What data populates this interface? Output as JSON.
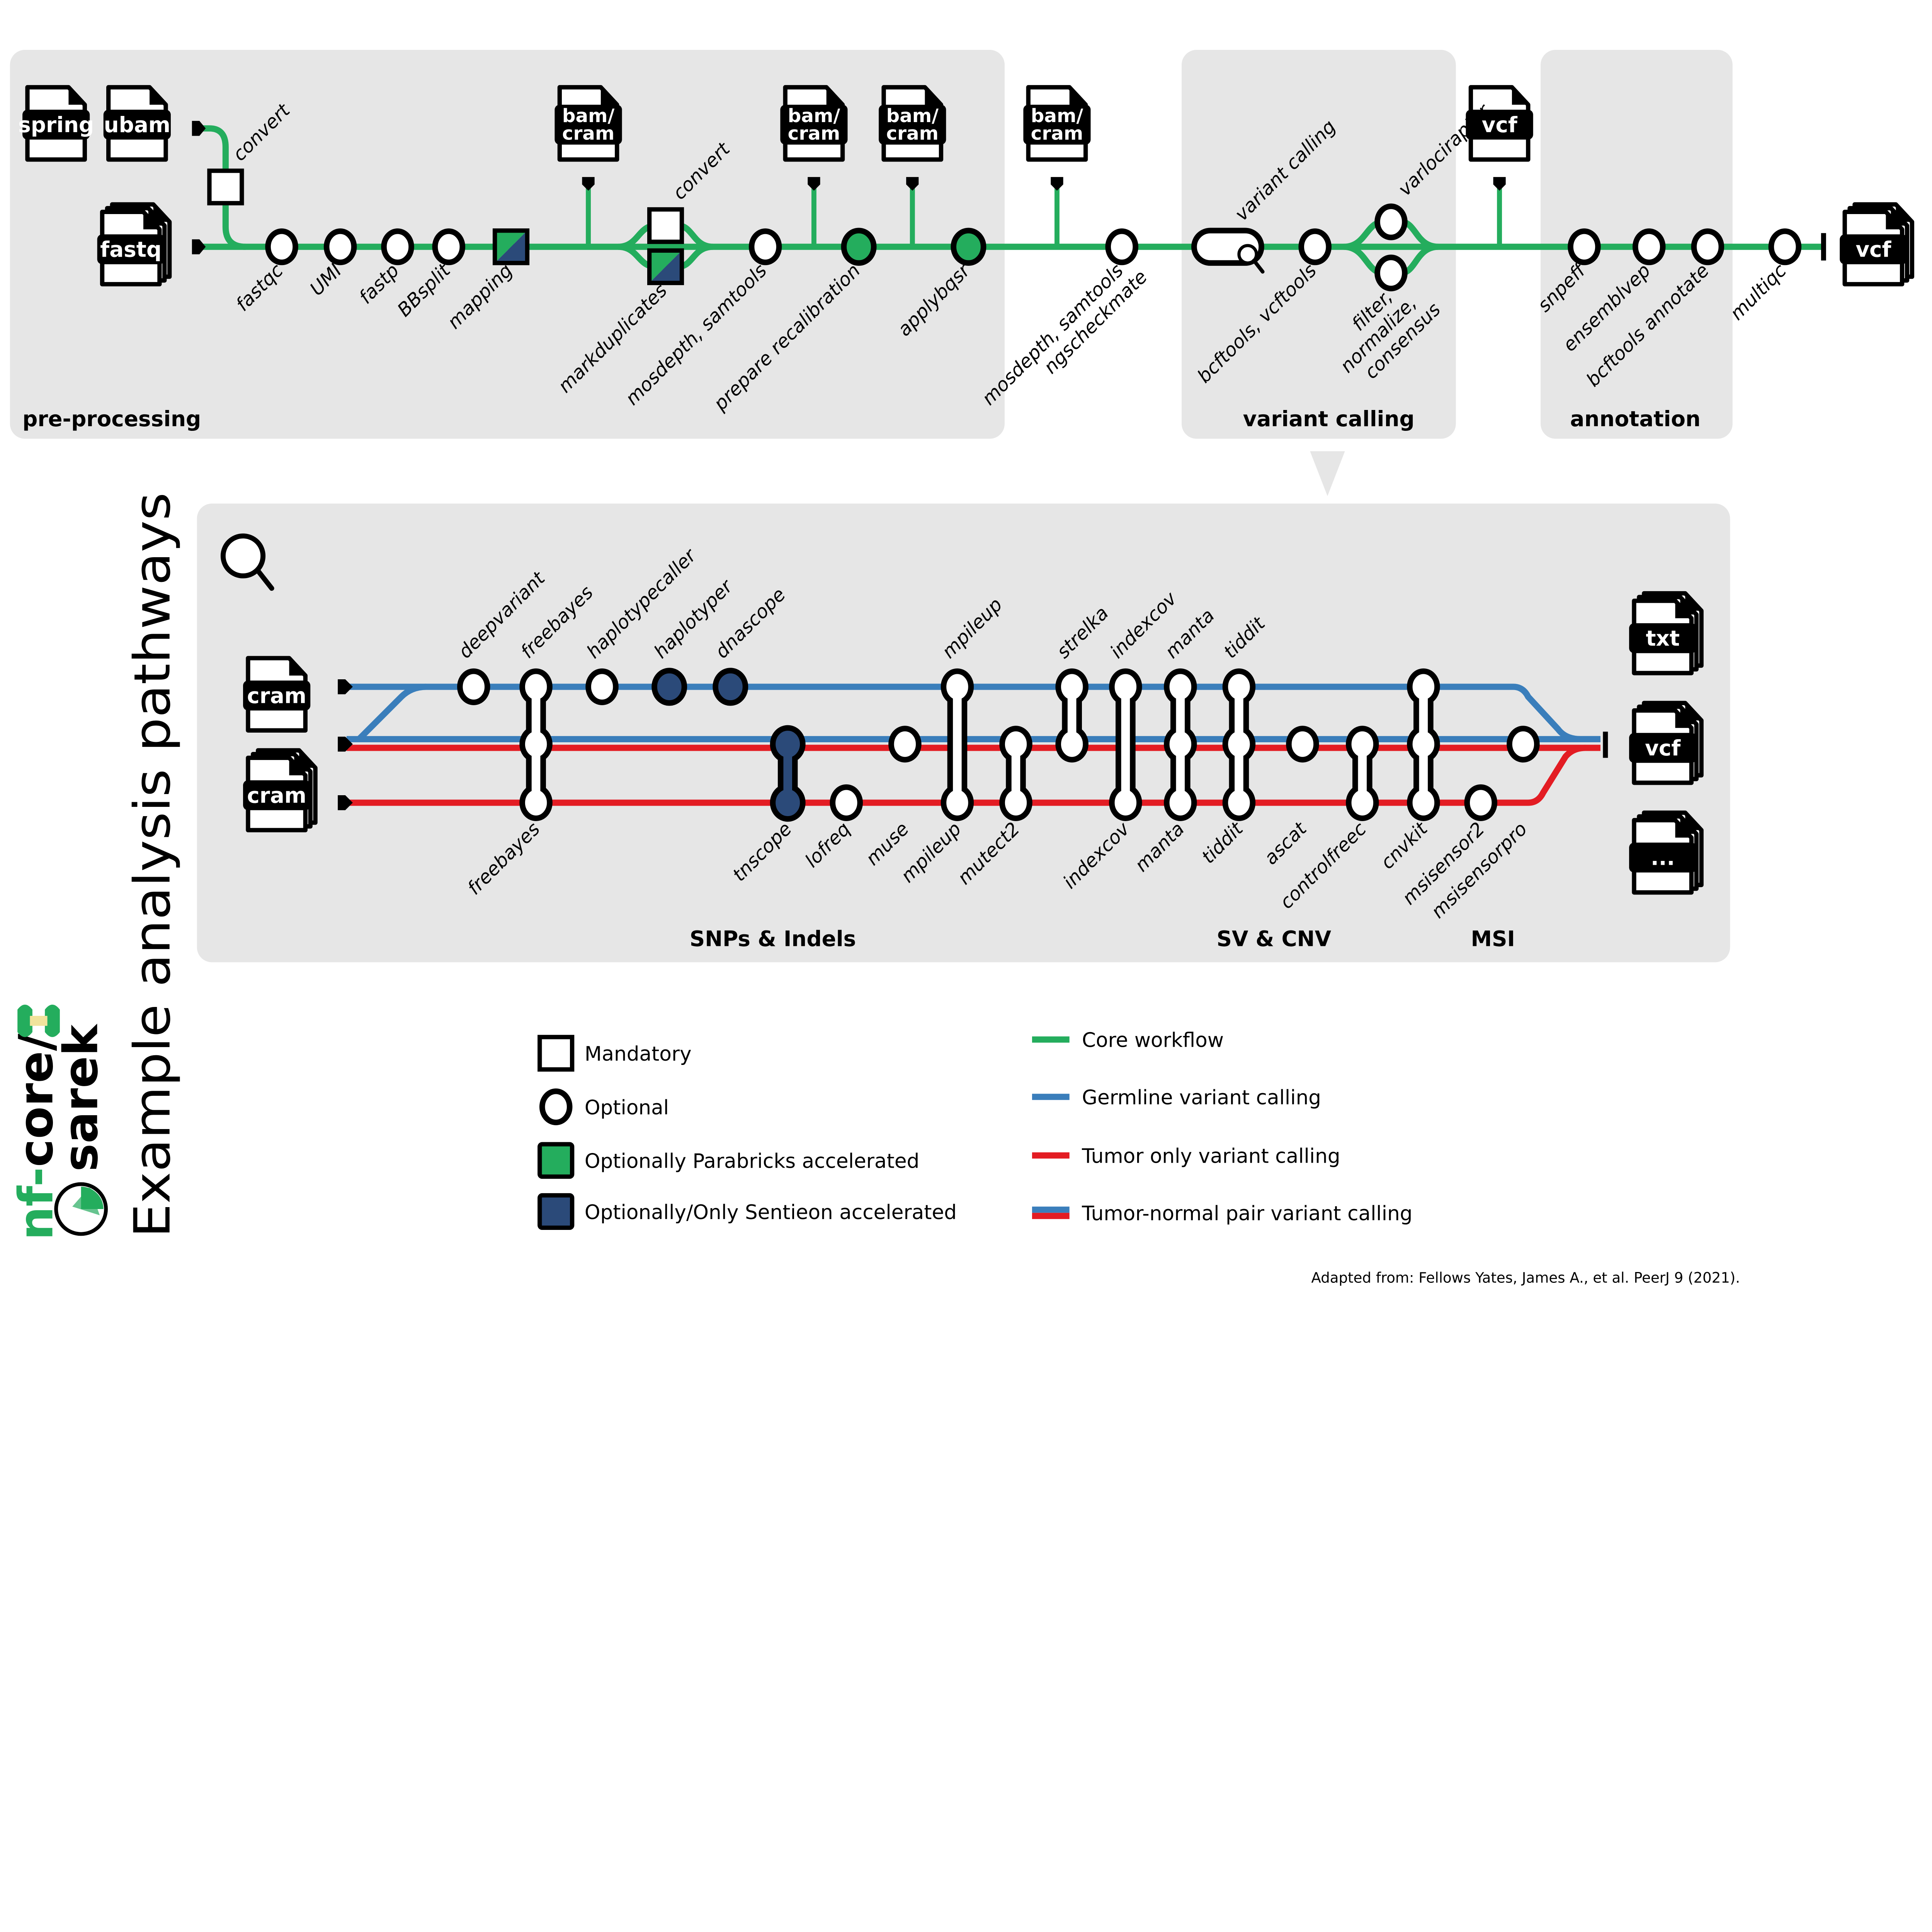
{
  "colors": {
    "core": "#25ad5e",
    "germline": "#3a7fbb",
    "tumor": "#e31b23",
    "sentieon": "#2b4a7a",
    "panel": "#e6e6e6"
  },
  "sections": {
    "preprocessing": "pre-processing",
    "variant_calling": "variant calling",
    "annotation": "annotation",
    "snps": "SNPs & Indels",
    "sv": "SV & CNV",
    "msi": "MSI"
  },
  "title": "Example analysis pathways",
  "logo": {
    "part1": "nf-",
    "part2": "core/",
    "part3": "sarek"
  },
  "top": {
    "files": [
      {
        "label": [
          "spring"
        ],
        "icon": "file-icon"
      },
      {
        "label": [
          "ubam"
        ],
        "icon": "file-icon"
      },
      {
        "label": [
          "fastq"
        ],
        "icon": "file-stack-icon"
      },
      {
        "label": [
          "bam/",
          "cram"
        ],
        "icon": "file-icon"
      },
      {
        "label": [
          "bam/",
          "cram"
        ],
        "icon": "file-icon"
      },
      {
        "label": [
          "bam/",
          "cram"
        ],
        "icon": "file-icon"
      },
      {
        "label": [
          "bam/",
          "cram"
        ],
        "icon": "file-icon"
      },
      {
        "label": [
          "vcf"
        ],
        "icon": "file-icon"
      },
      {
        "label": [
          "vcf"
        ],
        "icon": "file-stack-icon"
      }
    ],
    "nodes": [
      {
        "label": [
          "convert"
        ],
        "type": "mandatory"
      },
      {
        "label": [
          "fastqc"
        ],
        "type": "optional"
      },
      {
        "label": [
          "UMI"
        ],
        "type": "optional"
      },
      {
        "label": [
          "fastp"
        ],
        "type": "optional"
      },
      {
        "label": [
          "BBsplit"
        ],
        "type": "optional"
      },
      {
        "label": [
          "mapping"
        ],
        "type": "mandatory-parabricks-sentieon"
      },
      {
        "label": [
          "convert"
        ],
        "type": "mandatory"
      },
      {
        "label": [
          "markduplicates"
        ],
        "type": "mandatory-parabricks-sentieon"
      },
      {
        "label": [
          "mosdepth, samtools"
        ],
        "type": "optional"
      },
      {
        "label": [
          "prepare recalibration"
        ],
        "type": "parabricks"
      },
      {
        "label": [
          "applybqsr"
        ],
        "type": "parabricks"
      },
      {
        "label": [
          "mosdepth, samtools",
          "ngscheckmate"
        ],
        "type": "optional"
      },
      {
        "label": [
          "variant calling"
        ],
        "type": "variant-calling-pill"
      },
      {
        "label": [
          "bcftools, vcftools"
        ],
        "type": "optional"
      },
      {
        "label": [
          "varlociraptor"
        ],
        "type": "optional"
      },
      {
        "label": [
          "filter,",
          "normalize,",
          "consensus"
        ],
        "type": "optional"
      },
      {
        "label": [
          "snpeff"
        ],
        "type": "optional"
      },
      {
        "label": [
          "ensemblvep"
        ],
        "type": "optional"
      },
      {
        "label": [
          "bcftools annotate"
        ],
        "type": "optional"
      },
      {
        "label": [
          "multiqc"
        ],
        "type": "optional"
      }
    ]
  },
  "bottom": {
    "inputs": [
      {
        "label": [
          "cram"
        ]
      },
      {
        "label": [
          "cram"
        ]
      }
    ],
    "outputs": [
      {
        "label": [
          "txt"
        ]
      },
      {
        "label": [
          "vcf"
        ]
      },
      {
        "label": [
          "..."
        ]
      }
    ],
    "tools": [
      {
        "label": "deepvariant",
        "pos": "above",
        "lines": [
          "germline"
        ],
        "type": "optional"
      },
      {
        "label": "freebayes",
        "pos": "above",
        "lines": [
          "germline",
          "pair"
        ],
        "type": "optional"
      },
      {
        "label": "freebayes",
        "pos": "below",
        "lines": [
          "tumor"
        ],
        "type": "optional"
      },
      {
        "label": "haplotypecaller",
        "pos": "above",
        "lines": [
          "germline"
        ],
        "type": "optional"
      },
      {
        "label": "haplotyper",
        "pos": "above",
        "lines": [
          "germline"
        ],
        "type": "sentieon"
      },
      {
        "label": "dnascope",
        "pos": "above",
        "lines": [
          "germline"
        ],
        "type": "sentieon"
      },
      {
        "label": "tnscope",
        "pos": "below",
        "lines": [
          "pair",
          "tumor"
        ],
        "type": "sentieon"
      },
      {
        "label": "lofreq",
        "pos": "below",
        "lines": [
          "tumor"
        ],
        "type": "optional"
      },
      {
        "label": "muse",
        "pos": "below",
        "lines": [
          "pair"
        ],
        "type": "optional"
      },
      {
        "label": "mpileup",
        "pos": "above",
        "lines": [
          "germline"
        ],
        "type": "optional"
      },
      {
        "label": "mpileup",
        "pos": "below",
        "lines": [
          "tumor"
        ],
        "type": "optional"
      },
      {
        "label": "mutect2",
        "pos": "below",
        "lines": [
          "pair",
          "tumor"
        ],
        "type": "optional"
      },
      {
        "label": "strelka",
        "pos": "above",
        "lines": [
          "germline",
          "pair"
        ],
        "type": "optional"
      },
      {
        "label": "indexcov",
        "pos": "above",
        "lines": [
          "germline"
        ],
        "type": "optional"
      },
      {
        "label": "indexcov",
        "pos": "below",
        "lines": [
          "tumor"
        ],
        "type": "optional"
      },
      {
        "label": "manta",
        "pos": "above",
        "lines": [
          "germline",
          "pair"
        ],
        "type": "optional"
      },
      {
        "label": "manta",
        "pos": "below",
        "lines": [
          "tumor"
        ],
        "type": "optional"
      },
      {
        "label": "tiddit",
        "pos": "above",
        "lines": [
          "germline",
          "pair"
        ],
        "type": "optional"
      },
      {
        "label": "tiddit",
        "pos": "below",
        "lines": [
          "tumor"
        ],
        "type": "optional"
      },
      {
        "label": "ascat",
        "pos": "below",
        "lines": [
          "pair"
        ],
        "type": "optional"
      },
      {
        "label": "controlfreec",
        "pos": "below",
        "lines": [
          "pair",
          "tumor"
        ],
        "type": "optional"
      },
      {
        "label": "cnvkit",
        "pos": "below",
        "lines": [
          "germline",
          "pair",
          "tumor"
        ],
        "type": "optional"
      },
      {
        "label": "msisensor2",
        "pos": "below",
        "lines": [
          "tumor"
        ],
        "type": "optional"
      },
      {
        "label": "msisensorpro",
        "pos": "below",
        "lines": [
          "pair"
        ],
        "type": "optional"
      }
    ]
  },
  "legend": {
    "markers": [
      {
        "label": "Mandatory",
        "type": "mandatory"
      },
      {
        "label": "Optional",
        "type": "optional"
      },
      {
        "label": "Optionally Parabricks accelerated",
        "type": "parabricks"
      },
      {
        "label": "Optionally/Only Sentieon accelerated",
        "type": "sentieon"
      }
    ],
    "lines": [
      {
        "label": "Core workflow",
        "line": "core"
      },
      {
        "label": "Germline variant calling",
        "line": "germline"
      },
      {
        "label": "Tumor only variant calling",
        "line": "tumor"
      },
      {
        "label": "Tumor-normal pair variant calling",
        "line": "pair"
      }
    ]
  },
  "citation": "Adapted from: Fellows Yates, James A., et al.  PeerJ 9 (2021)."
}
